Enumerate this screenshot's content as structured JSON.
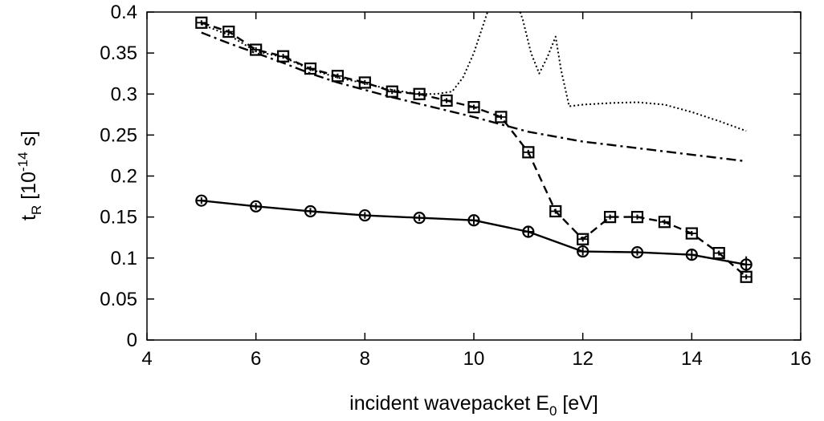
{
  "chart_data": {
    "type": "line",
    "xlabel": {
      "text": "incident wavepacket E",
      "sub": "0",
      "after": " [eV]"
    },
    "ylabel": {
      "pre": "t",
      "sub": "R",
      "mid": " [10",
      "sup": "-14",
      "post": " s]"
    },
    "xlim": [
      4,
      16
    ],
    "ylim": [
      0,
      0.4
    ],
    "xticks": [
      4,
      6,
      8,
      10,
      12,
      14,
      16
    ],
    "yticks": [
      0,
      0.05,
      0.1,
      0.15,
      0.2,
      0.25,
      0.3,
      0.35,
      0.4
    ],
    "xtick_labels": [
      "4",
      "6",
      "8",
      "10",
      "12",
      "14",
      "16"
    ],
    "ytick_labels": [
      "0",
      "0.05",
      "0.1",
      "0.15",
      "0.2",
      "0.25",
      "0.3",
      "0.35",
      "0.4"
    ],
    "grid": false,
    "legend": "none",
    "series": [
      {
        "style": "solid",
        "marker": "circle",
        "color": "#000000",
        "x": [
          5,
          6,
          7,
          8,
          9,
          10,
          11,
          12,
          13,
          14,
          15
        ],
        "y": [
          0.17,
          0.163,
          0.157,
          0.152,
          0.149,
          0.146,
          0.132,
          0.108,
          0.107,
          0.104,
          0.092
        ],
        "err": [
          0.004,
          0.004,
          0.004,
          0.004,
          0.004,
          0.005,
          0.007,
          0.005,
          0.004,
          0.006,
          0.01
        ]
      },
      {
        "style": "dashed",
        "marker": "square",
        "color": "#000000",
        "x": [
          5,
          5.5,
          6,
          6.5,
          7,
          7.5,
          8,
          8.5,
          9,
          9.5,
          10,
          10.5,
          11,
          11.5,
          12,
          12.5,
          13,
          13.5,
          14,
          14.5,
          15
        ],
        "y": [
          0.387,
          0.376,
          0.354,
          0.346,
          0.331,
          0.322,
          0.314,
          0.303,
          0.3,
          0.292,
          0.284,
          0.272,
          0.229,
          0.157,
          0.123,
          0.15,
          0.15,
          0.144,
          0.13,
          0.106,
          0.077
        ],
        "err": [
          0.003,
          0.003,
          0.003,
          0.003,
          0.003,
          0.003,
          0.003,
          0.003,
          0.003,
          0.003,
          0.003,
          0.003,
          0.003,
          0.003,
          0.003,
          0.003,
          0.003,
          0.003,
          0.003,
          0.003,
          0.003
        ]
      },
      {
        "style": "dashdot",
        "marker": "none",
        "color": "#000000",
        "x": [
          5,
          5.5,
          6,
          6.5,
          7,
          7.5,
          8,
          8.5,
          9,
          9.5,
          10,
          10.5,
          11,
          11.5,
          12,
          12.5,
          13,
          13.5,
          14,
          14.5,
          15
        ],
        "y": [
          0.375,
          0.362,
          0.35,
          0.338,
          0.325,
          0.314,
          0.305,
          0.296,
          0.288,
          0.28,
          0.272,
          0.263,
          0.254,
          0.248,
          0.242,
          0.238,
          0.234,
          0.23,
          0.226,
          0.222,
          0.218
        ]
      },
      {
        "style": "dotted",
        "marker": "none",
        "color": "#000000",
        "x": [
          5,
          5.5,
          6,
          6.5,
          7,
          7.5,
          8,
          8.5,
          9,
          9.3,
          9.6,
          9.8,
          10,
          10.15,
          10.3,
          10.45,
          10.6,
          10.75,
          10.9,
          11.05,
          11.2,
          11.35,
          11.5,
          11.6,
          11.75,
          12,
          12.5,
          13,
          13.5,
          14,
          14.5,
          15
        ],
        "y": [
          0.385,
          0.372,
          0.352,
          0.345,
          0.33,
          0.32,
          0.313,
          0.305,
          0.3,
          0.3,
          0.303,
          0.32,
          0.35,
          0.38,
          0.41,
          0.43,
          0.44,
          0.42,
          0.39,
          0.35,
          0.325,
          0.345,
          0.37,
          0.33,
          0.285,
          0.287,
          0.289,
          0.29,
          0.287,
          0.278,
          0.267,
          0.255
        ]
      }
    ]
  }
}
